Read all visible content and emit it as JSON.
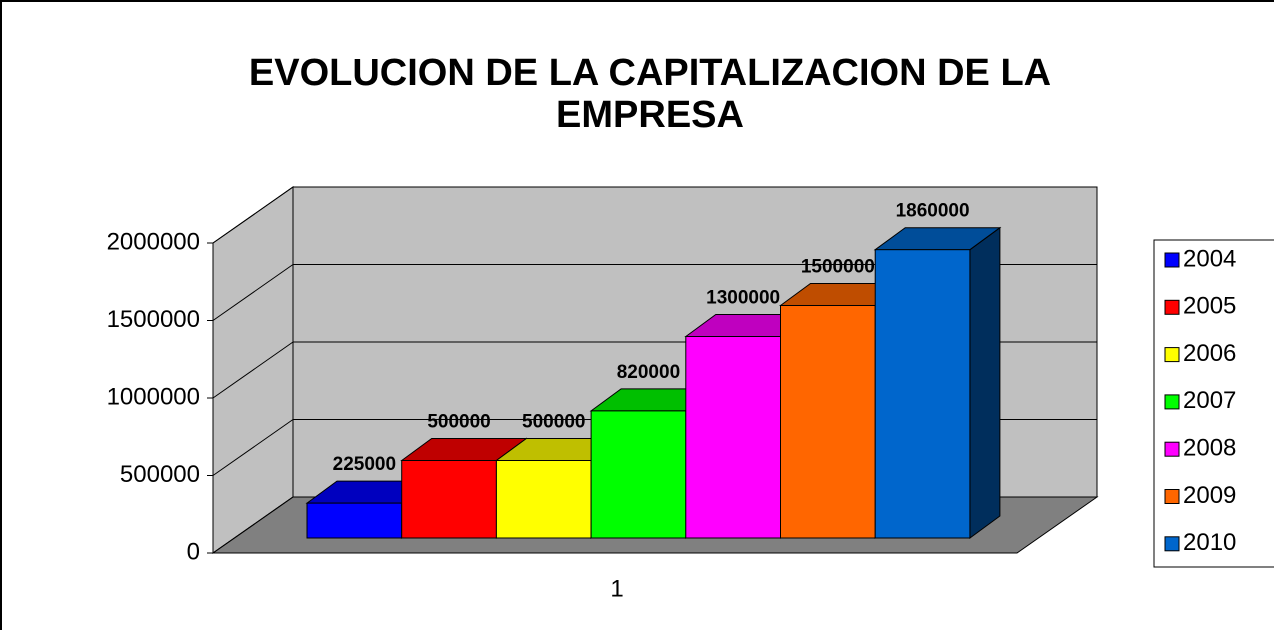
{
  "chart_data": {
    "type": "bar",
    "title": "EVOLUCION DE LA CAPITALIZACION DE LA EMPRESA",
    "categories": [
      "1"
    ],
    "series": [
      {
        "name": "2004",
        "color": "#0000ff",
        "values": [
          225000
        ]
      },
      {
        "name": "2005",
        "color": "#ff0000",
        "values": [
          500000
        ]
      },
      {
        "name": "2006",
        "color": "#ffff00",
        "values": [
          500000
        ]
      },
      {
        "name": "2007",
        "color": "#00ff00",
        "values": [
          820000
        ]
      },
      {
        "name": "2008",
        "color": "#ff00ff",
        "values": [
          1300000
        ]
      },
      {
        "name": "2009",
        "color": "#ff6600",
        "values": [
          1500000
        ]
      },
      {
        "name": "2010",
        "color": "#0066cc",
        "values": [
          1860000
        ]
      }
    ],
    "ylim": [
      0,
      2000000
    ],
    "yticks": [
      0,
      500000,
      1000000,
      1500000,
      2000000
    ],
    "grid": true,
    "legend": "right"
  }
}
